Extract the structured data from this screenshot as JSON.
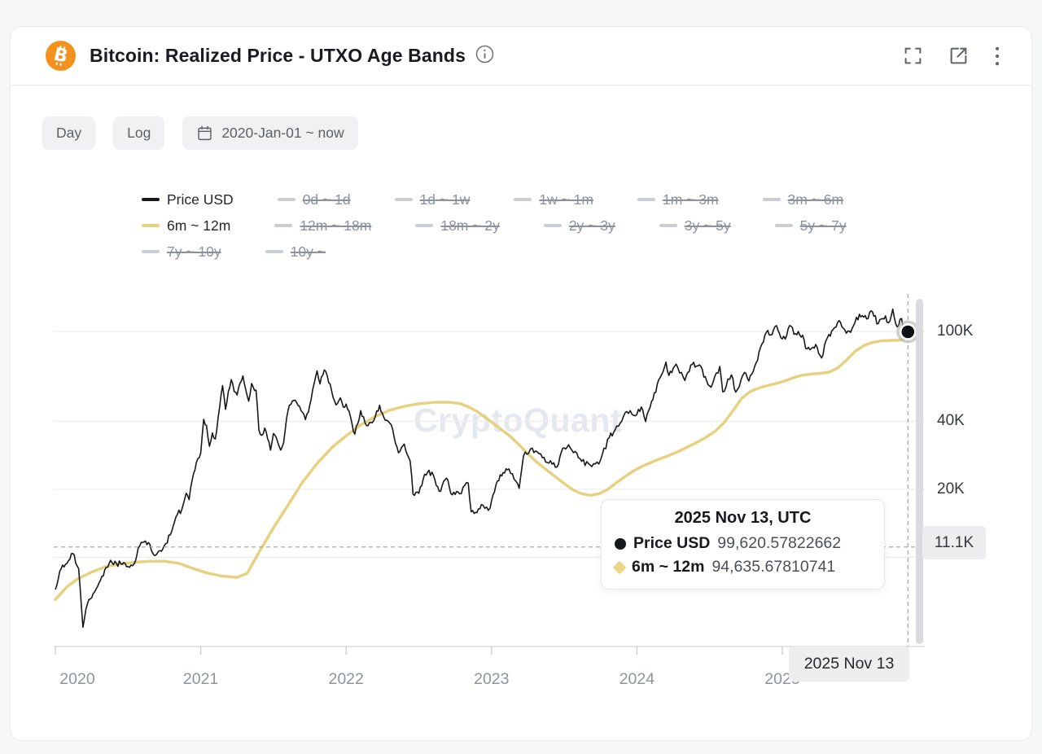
{
  "header": {
    "title": "Bitcoin: Realized Price - UTXO Age Bands",
    "coin": "BTC",
    "coin_symbol": "B",
    "icons": [
      "info-icon",
      "fullscreen-icon",
      "open-in-new-icon",
      "kebab-menu-icon"
    ]
  },
  "toolbar": {
    "interval_label": "Day",
    "scale_label": "Log",
    "date_range_label": "2020-Jan-01 ~ now"
  },
  "legend": {
    "rows": [
      [
        {
          "label": "Price USD",
          "state": "on",
          "swatch": "#17181b"
        },
        {
          "label": "0d ~ 1d",
          "state": "off",
          "swatch": "#c9cdd5"
        },
        {
          "label": "1d ~ 1w",
          "state": "off",
          "swatch": "#c9cdd5"
        },
        {
          "label": "1w ~ 1m",
          "state": "off",
          "swatch": "#c9cdd5"
        },
        {
          "label": "1m ~ 3m",
          "state": "off",
          "swatch": "#c9cdd5"
        },
        {
          "label": "3m ~ 6m",
          "state": "off",
          "swatch": "#c9cdd5"
        }
      ],
      [
        {
          "label": "6m ~ 12m",
          "state": "on",
          "swatch": "#e7d07e"
        },
        {
          "label": "12m ~ 18m",
          "state": "off",
          "swatch": "#c9cdd5"
        },
        {
          "label": "18m ~ 2y",
          "state": "off",
          "swatch": "#c9cdd5"
        },
        {
          "label": "2y ~ 3y",
          "state": "off",
          "swatch": "#c9cdd5"
        },
        {
          "label": "3y ~ 5y",
          "state": "off",
          "swatch": "#c9cdd5"
        },
        {
          "label": "5y ~ 7y",
          "state": "off",
          "swatch": "#c9cdd5"
        }
      ],
      [
        {
          "label": "7y ~ 10y",
          "state": "off",
          "swatch": "#c9cdd5"
        },
        {
          "label": "10y ~",
          "state": "off",
          "swatch": "#c9cdd5"
        }
      ]
    ]
  },
  "watermark": "CryptoQuant",
  "tooltip": {
    "title": "2025 Nov 13, UTC",
    "rows": [
      {
        "marker": "circle",
        "color": "#17181c",
        "label": "Price USD",
        "value": "99,620.57822662"
      },
      {
        "marker": "diamond",
        "color": "#ecd584",
        "label": "6m ~ 12m",
        "value": "94,635.67810741"
      }
    ]
  },
  "badges": {
    "y_cursor": "11.1K",
    "x_cursor": "2025 Nov 13"
  },
  "colors": {
    "price_line": "#17181b",
    "band_line": "#e7d07e",
    "bitcoin_orange": "#f2921d",
    "grid": "#ededf0",
    "axis": "#d9dbde",
    "crosshair": "#9fa2a8"
  },
  "chart_data": {
    "type": "line",
    "title": "Bitcoin: Realized Price - UTXO Age Bands",
    "x_axis": {
      "ticks": [
        2020,
        2021,
        2022,
        2023,
        2024,
        2025
      ],
      "labels": [
        "2020",
        "2021",
        "2022",
        "2023",
        "2024",
        "2025"
      ],
      "range": [
        2020.0,
        2025.98
      ]
    },
    "y_axis": {
      "scale": "log",
      "unit": "USD",
      "ticks": [
        {
          "value": 100000,
          "label": "100K"
        },
        {
          "value": 40000,
          "label": "40K"
        },
        {
          "value": 20000,
          "label": "20K"
        },
        {
          "value": 10000,
          "label": ""
        }
      ]
    },
    "crosshair": {
      "date_label": "2025 Nov 13",
      "x_value": 2025.864,
      "cursor_value": 11100,
      "cursor_label": "11.1K",
      "marker_series": "Price USD",
      "marker_value": 99620.57822662
    },
    "series": [
      {
        "name": "Price USD",
        "color": "#17181b",
        "style": "jagged",
        "points": [
          [
            2020.0,
            7200
          ],
          [
            2020.04,
            8900
          ],
          [
            2020.08,
            9400
          ],
          [
            2020.12,
            10400
          ],
          [
            2020.16,
            8900
          ],
          [
            2020.19,
            4900
          ],
          [
            2020.22,
            6200
          ],
          [
            2020.26,
            6900
          ],
          [
            2020.3,
            7700
          ],
          [
            2020.34,
            8800
          ],
          [
            2020.38,
            9700
          ],
          [
            2020.42,
            9400
          ],
          [
            2020.46,
            9300
          ],
          [
            2020.5,
            9100
          ],
          [
            2020.54,
            9300
          ],
          [
            2020.57,
            11000
          ],
          [
            2020.61,
            11700
          ],
          [
            2020.65,
            11400
          ],
          [
            2020.68,
            10200
          ],
          [
            2020.72,
            10700
          ],
          [
            2020.76,
            11500
          ],
          [
            2020.8,
            13000
          ],
          [
            2020.84,
            15500
          ],
          [
            2020.87,
            16300
          ],
          [
            2020.9,
            19200
          ],
          [
            2020.92,
            18000
          ],
          [
            2020.95,
            23400
          ],
          [
            2020.98,
            27300
          ],
          [
            2021.0,
            29000
          ],
          [
            2021.02,
            40800
          ],
          [
            2021.04,
            38200
          ],
          [
            2021.06,
            31000
          ],
          [
            2021.08,
            35500
          ],
          [
            2021.1,
            33400
          ],
          [
            2021.13,
            46300
          ],
          [
            2021.15,
            57500
          ],
          [
            2021.17,
            45200
          ],
          [
            2021.19,
            54200
          ],
          [
            2021.21,
            61200
          ],
          [
            2021.23,
            54100
          ],
          [
            2021.25,
            52300
          ],
          [
            2021.27,
            58900
          ],
          [
            2021.29,
            63500
          ],
          [
            2021.31,
            55000
          ],
          [
            2021.33,
            49100
          ],
          [
            2021.35,
            58800
          ],
          [
            2021.38,
            55000
          ],
          [
            2021.4,
            36700
          ],
          [
            2021.42,
            34700
          ],
          [
            2021.44,
            37300
          ],
          [
            2021.46,
            33400
          ],
          [
            2021.48,
            29800
          ],
          [
            2021.5,
            35300
          ],
          [
            2021.52,
            33800
          ],
          [
            2021.55,
            29800
          ],
          [
            2021.57,
            32100
          ],
          [
            2021.6,
            44600
          ],
          [
            2021.64,
            49500
          ],
          [
            2021.67,
            46900
          ],
          [
            2021.7,
            43800
          ],
          [
            2021.72,
            40700
          ],
          [
            2021.75,
            47300
          ],
          [
            2021.77,
            55300
          ],
          [
            2021.8,
            66900
          ],
          [
            2021.82,
            58500
          ],
          [
            2021.85,
            67500
          ],
          [
            2021.87,
            63600
          ],
          [
            2021.9,
            54700
          ],
          [
            2021.93,
            47300
          ],
          [
            2021.96,
            50800
          ],
          [
            2021.98,
            46300
          ],
          [
            2022.0,
            47700
          ],
          [
            2022.03,
            41800
          ],
          [
            2022.06,
            35100
          ],
          [
            2022.1,
            44600
          ],
          [
            2022.14,
            38300
          ],
          [
            2022.18,
            39400
          ],
          [
            2022.23,
            47100
          ],
          [
            2022.27,
            40400
          ],
          [
            2022.31,
            38600
          ],
          [
            2022.36,
            29000
          ],
          [
            2022.4,
            31700
          ],
          [
            2022.44,
            26700
          ],
          [
            2022.46,
            19000
          ],
          [
            2022.5,
            19200
          ],
          [
            2022.54,
            23300
          ],
          [
            2022.59,
            23800
          ],
          [
            2022.64,
            19600
          ],
          [
            2022.69,
            22400
          ],
          [
            2022.73,
            18900
          ],
          [
            2022.78,
            19100
          ],
          [
            2022.84,
            21300
          ],
          [
            2022.86,
            15900
          ],
          [
            2022.89,
            15800
          ],
          [
            2022.93,
            17100
          ],
          [
            2022.99,
            16500
          ],
          [
            2023.03,
            20900
          ],
          [
            2023.08,
            23700
          ],
          [
            2023.12,
            24600
          ],
          [
            2023.19,
            20200
          ],
          [
            2023.22,
            28100
          ],
          [
            2023.28,
            30400
          ],
          [
            2023.35,
            27600
          ],
          [
            2023.45,
            25100
          ],
          [
            2023.49,
            30400
          ],
          [
            2023.53,
            31500
          ],
          [
            2023.62,
            26600
          ],
          [
            2023.69,
            25200
          ],
          [
            2023.75,
            27000
          ],
          [
            2023.81,
            33900
          ],
          [
            2023.85,
            36700
          ],
          [
            2023.93,
            44200
          ],
          [
            2023.99,
            42300
          ],
          [
            2024.03,
            46300
          ],
          [
            2024.06,
            39900
          ],
          [
            2024.11,
            49900
          ],
          [
            2024.16,
            62500
          ],
          [
            2024.2,
            73100
          ],
          [
            2024.22,
            63800
          ],
          [
            2024.27,
            71600
          ],
          [
            2024.33,
            60600
          ],
          [
            2024.38,
            71400
          ],
          [
            2024.43,
            71100
          ],
          [
            2024.48,
            60300
          ],
          [
            2024.51,
            56600
          ],
          [
            2024.57,
            69900
          ],
          [
            2024.59,
            54000
          ],
          [
            2024.65,
            64200
          ],
          [
            2024.68,
            53900
          ],
          [
            2024.74,
            65800
          ],
          [
            2024.77,
            60300
          ],
          [
            2024.82,
            72700
          ],
          [
            2024.86,
            88000
          ],
          [
            2024.89,
            99000
          ],
          [
            2024.93,
            96900
          ],
          [
            2024.96,
            106100
          ],
          [
            2024.99,
            93700
          ],
          [
            2025.02,
            92500
          ],
          [
            2025.05,
            106100
          ],
          [
            2025.09,
            97700
          ],
          [
            2025.14,
            96200
          ],
          [
            2025.16,
            84300
          ],
          [
            2025.2,
            83900
          ],
          [
            2025.23,
            87500
          ],
          [
            2025.27,
            76300
          ],
          [
            2025.31,
            93700
          ],
          [
            2025.36,
            104100
          ],
          [
            2025.39,
            111700
          ],
          [
            2025.43,
            101600
          ],
          [
            2025.47,
            99000
          ],
          [
            2025.5,
            109600
          ],
          [
            2025.53,
            119000
          ],
          [
            2025.58,
            113500
          ],
          [
            2025.61,
            123300
          ],
          [
            2025.66,
            108200
          ],
          [
            2025.71,
            117100
          ],
          [
            2025.73,
            109200
          ],
          [
            2025.76,
            125500
          ],
          [
            2025.79,
            104800
          ],
          [
            2025.82,
            114000
          ],
          [
            2025.84,
            101000
          ],
          [
            2025.855,
            105900
          ],
          [
            2025.864,
            99620.57822662
          ]
        ]
      },
      {
        "name": "6m ~ 12m",
        "color": "#e7d07e",
        "style": "smooth",
        "points": [
          [
            2020.0,
            6500
          ],
          [
            2020.08,
            7400
          ],
          [
            2020.15,
            8000
          ],
          [
            2020.25,
            8600
          ],
          [
            2020.35,
            9100
          ],
          [
            2020.45,
            9350
          ],
          [
            2020.55,
            9500
          ],
          [
            2020.65,
            9600
          ],
          [
            2020.75,
            9600
          ],
          [
            2020.85,
            9400
          ],
          [
            2020.95,
            8900
          ],
          [
            2021.05,
            8500
          ],
          [
            2021.15,
            8250
          ],
          [
            2021.25,
            8150
          ],
          [
            2021.32,
            8500
          ],
          [
            2021.4,
            10500
          ],
          [
            2021.5,
            13500
          ],
          [
            2021.6,
            17000
          ],
          [
            2021.7,
            21500
          ],
          [
            2021.8,
            26000
          ],
          [
            2021.9,
            30500
          ],
          [
            2022.0,
            34500
          ],
          [
            2022.1,
            38500
          ],
          [
            2022.2,
            42000
          ],
          [
            2022.3,
            44800
          ],
          [
            2022.4,
            46600
          ],
          [
            2022.5,
            47800
          ],
          [
            2022.6,
            48500
          ],
          [
            2022.7,
            48600
          ],
          [
            2022.78,
            48000
          ],
          [
            2022.84,
            46400
          ],
          [
            2022.9,
            44200
          ],
          [
            2022.96,
            41500
          ],
          [
            2023.02,
            38800
          ],
          [
            2023.08,
            36300
          ],
          [
            2023.14,
            33800
          ],
          [
            2023.2,
            31000
          ],
          [
            2023.26,
            28300
          ],
          [
            2023.32,
            26100
          ],
          [
            2023.38,
            24300
          ],
          [
            2023.44,
            22700
          ],
          [
            2023.5,
            21200
          ],
          [
            2023.56,
            19900
          ],
          [
            2023.62,
            19100
          ],
          [
            2023.68,
            18800
          ],
          [
            2023.74,
            19100
          ],
          [
            2023.8,
            20000
          ],
          [
            2023.86,
            21400
          ],
          [
            2023.92,
            22800
          ],
          [
            2023.98,
            24200
          ],
          [
            2024.06,
            25700
          ],
          [
            2024.14,
            27000
          ],
          [
            2024.22,
            28200
          ],
          [
            2024.3,
            29700
          ],
          [
            2024.38,
            31500
          ],
          [
            2024.46,
            33500
          ],
          [
            2024.54,
            36200
          ],
          [
            2024.6,
            39500
          ],
          [
            2024.66,
            44500
          ],
          [
            2024.72,
            50500
          ],
          [
            2024.78,
            54200
          ],
          [
            2024.84,
            56200
          ],
          [
            2024.9,
            57600
          ],
          [
            2024.96,
            58900
          ],
          [
            2025.02,
            60400
          ],
          [
            2025.08,
            62500
          ],
          [
            2025.14,
            64000
          ],
          [
            2025.2,
            64800
          ],
          [
            2025.26,
            65200
          ],
          [
            2025.32,
            66000
          ],
          [
            2025.38,
            68800
          ],
          [
            2025.44,
            74500
          ],
          [
            2025.5,
            81500
          ],
          [
            2025.56,
            86500
          ],
          [
            2025.62,
            89400
          ],
          [
            2025.68,
            90800
          ],
          [
            2025.74,
            91200
          ],
          [
            2025.8,
            91400
          ],
          [
            2025.83,
            92000
          ],
          [
            2025.85,
            93200
          ],
          [
            2025.864,
            94635.67810741
          ]
        ]
      }
    ]
  }
}
